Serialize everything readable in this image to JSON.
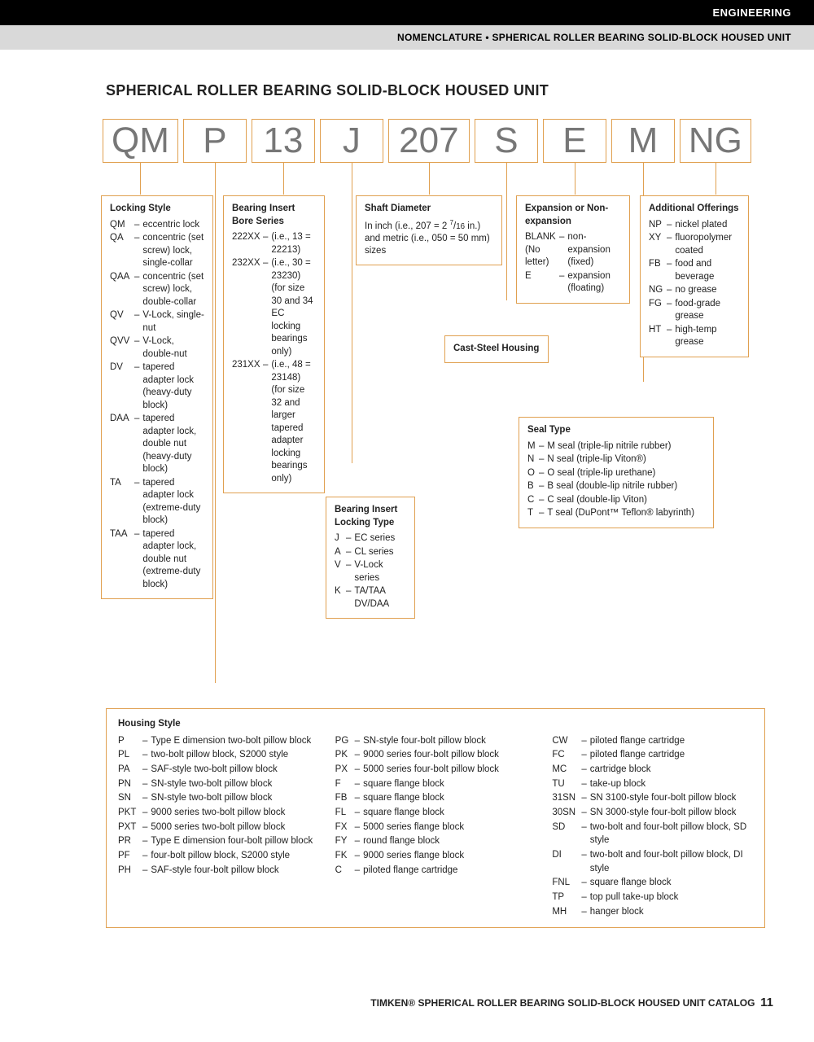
{
  "header": {
    "engineering": "ENGINEERING",
    "breadcrumb": "NOMENCLATURE • SPHERICAL ROLLER BEARING SOLID-BLOCK HOUSED UNIT"
  },
  "title": "SPHERICAL ROLLER BEARING SOLID-BLOCK HOUSED UNIT",
  "codes": [
    "QM",
    "P",
    "13",
    "J",
    "207",
    "S",
    "E",
    "M",
    "NG"
  ],
  "locking_style": {
    "hdr": "Locking Style",
    "items": [
      {
        "c": "QM",
        "d": "eccentric lock"
      },
      {
        "c": "QA",
        "d": "concentric (set screw) lock, single-collar"
      },
      {
        "c": "QAA",
        "d": "concentric (set screw) lock, double-collar"
      },
      {
        "c": "QV",
        "d": "V-Lock, single-nut"
      },
      {
        "c": "QVV",
        "d": "V-Lock, double-nut"
      },
      {
        "c": "DV",
        "d": "tapered adapter lock (heavy-duty block)"
      },
      {
        "c": "DAA",
        "d": "tapered adapter lock, double nut (heavy-duty block)"
      },
      {
        "c": "TA",
        "d": "tapered adapter lock (extreme-duty block)"
      },
      {
        "c": "TAA",
        "d": "tapered adapter lock, double nut (extreme-duty block)"
      }
    ]
  },
  "bore_series": {
    "hdr": "Bearing Insert Bore Series",
    "items": [
      {
        "c": "222XX",
        "d": "(i.e., 13 = 22213)"
      },
      {
        "c": "232XX",
        "d": "(i.e., 30 = 23230) (for size 30 and 34 EC locking bearings only)"
      },
      {
        "c": "231XX",
        "d": "(i.e., 48 = 23148) (for size 32 and larger tapered adapter locking bearings only)"
      }
    ]
  },
  "locking_type": {
    "hdr": "Bearing Insert Locking Type",
    "items": [
      {
        "c": "J",
        "d": "EC series"
      },
      {
        "c": "A",
        "d": "CL series"
      },
      {
        "c": "V",
        "d": "V-Lock series"
      },
      {
        "c": "K",
        "d": "TA/TAA DV/DAA"
      }
    ]
  },
  "shaft": {
    "hdr": "Shaft Diameter",
    "text": "In inch (i.e., 207 = 2 7/16 in.) and metric (i.e., 050 = 50 mm) sizes"
  },
  "cast_steel": "Cast-Steel Housing",
  "expansion": {
    "hdr": "Expansion or Non-expansion",
    "items": [
      {
        "c": "BLANK (No letter)",
        "d": "non-expansion (fixed)"
      },
      {
        "c": "E",
        "d": "expansion (floating)"
      }
    ]
  },
  "seal": {
    "hdr": "Seal Type",
    "items": [
      {
        "c": "M",
        "d": "M seal (triple-lip nitrile rubber)"
      },
      {
        "c": "N",
        "d": "N seal (triple-lip Viton®)"
      },
      {
        "c": "O",
        "d": "O seal (triple-lip urethane)"
      },
      {
        "c": "B",
        "d": "B seal (double-lip nitrile rubber)"
      },
      {
        "c": "C",
        "d": "C seal (double-lip Viton)"
      },
      {
        "c": "T",
        "d": "T seal (DuPont™ Teflon® labyrinth)"
      }
    ]
  },
  "additional": {
    "hdr": "Additional Offerings",
    "items": [
      {
        "c": "NP",
        "d": "nickel plated"
      },
      {
        "c": "XY",
        "d": "fluoropolymer coated"
      },
      {
        "c": "FB",
        "d": "food and beverage"
      },
      {
        "c": "NG",
        "d": "no grease"
      },
      {
        "c": "FG",
        "d": "food-grade grease"
      },
      {
        "c": "HT",
        "d": "high-temp grease"
      }
    ]
  },
  "housing": {
    "hdr": "Housing Style",
    "col1": [
      {
        "c": "P",
        "d": "Type E dimension two-bolt pillow block"
      },
      {
        "c": "PL",
        "d": "two-bolt pillow block, S2000 style"
      },
      {
        "c": "PA",
        "d": "SAF-style two-bolt pillow block"
      },
      {
        "c": "PN",
        "d": "SN-style two-bolt pillow block"
      },
      {
        "c": "SN",
        "d": "SN-style two-bolt pillow block"
      },
      {
        "c": "PKT",
        "d": "9000 series two-bolt pillow block"
      },
      {
        "c": "PXT",
        "d": "5000 series two-bolt pillow block"
      },
      {
        "c": "PR",
        "d": "Type E dimension four-bolt pillow block"
      },
      {
        "c": "PF",
        "d": "four-bolt pillow block, S2000 style"
      },
      {
        "c": "PH",
        "d": "SAF-style four-bolt pillow block"
      }
    ],
    "col2": [
      {
        "c": "PG",
        "d": "SN-style four-bolt pillow block"
      },
      {
        "c": "PK",
        "d": "9000 series four-bolt pillow block"
      },
      {
        "c": "PX",
        "d": "5000 series four-bolt pillow block"
      },
      {
        "c": "F",
        "d": "square flange block"
      },
      {
        "c": "FB",
        "d": "square flange block"
      },
      {
        "c": "FL",
        "d": "square flange block"
      },
      {
        "c": "FX",
        "d": "5000 series flange block"
      },
      {
        "c": "FY",
        "d": "round flange block"
      },
      {
        "c": "FK",
        "d": "9000 series flange block"
      },
      {
        "c": "C",
        "d": "piloted flange cartridge"
      }
    ],
    "col3": [
      {
        "c": "CW",
        "d": "piloted flange cartridge"
      },
      {
        "c": "FC",
        "d": "piloted flange cartridge"
      },
      {
        "c": "MC",
        "d": "cartridge block"
      },
      {
        "c": "TU",
        "d": "take-up block"
      },
      {
        "c": "31SN",
        "d": "SN 3100-style four-bolt pillow block"
      },
      {
        "c": "30SN",
        "d": "SN 3000-style four-bolt pillow block"
      },
      {
        "c": "SD",
        "d": "two-bolt and four-bolt pillow block, SD style"
      },
      {
        "c": "DI",
        "d": "two-bolt and four-bolt pillow block, DI style"
      },
      {
        "c": "FNL",
        "d": "square flange block"
      },
      {
        "c": "TP",
        "d": "top pull take-up block"
      },
      {
        "c": "MH",
        "d": "hanger block"
      }
    ]
  },
  "footer": {
    "text": "TIMKEN® SPHERICAL ROLLER BEARING SOLID-BLOCK HOUSED UNIT CATALOG",
    "page": "11"
  },
  "colors": {
    "accent": "#e0a050",
    "black": "#000000",
    "gray_bg": "#d9d9d9",
    "code_text": "#777777"
  }
}
